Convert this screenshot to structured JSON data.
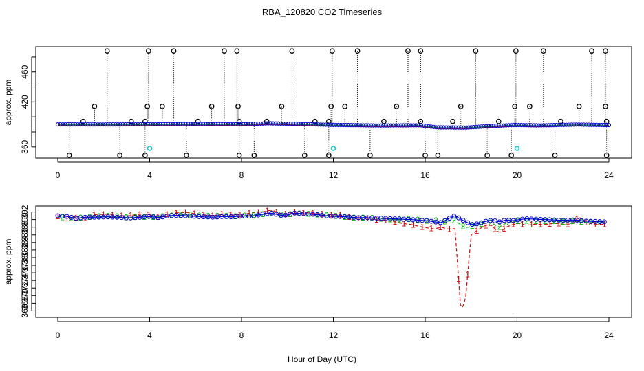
{
  "title": "RBA_120820  CO2 Timeseries",
  "xlabel": "Hour of Day (UTC)",
  "colors": {
    "red": "#dd0000",
    "green": "#00bb00",
    "blue": "#0000dd",
    "black": "#000000",
    "cyan": "#00cccc"
  },
  "chart_data": [
    {
      "type": "scatter",
      "panel": "top",
      "ylabel": "approx. ppm",
      "xlim": [
        0,
        24
      ],
      "ylim": [
        347,
        490
      ],
      "x_ticks": [
        0,
        4,
        8,
        12,
        16,
        20,
        24
      ],
      "y_ticks": [
        360,
        420,
        460
      ],
      "baseline": [
        [
          0,
          389.5
        ],
        [
          2,
          389.4
        ],
        [
          4,
          389.6
        ],
        [
          6,
          390.0
        ],
        [
          8,
          389.6
        ],
        [
          9.2,
          391.0
        ],
        [
          10.4,
          390.1
        ],
        [
          12,
          388.8
        ],
        [
          14,
          388.0
        ],
        [
          15.8,
          388.3
        ],
        [
          16.5,
          385.5
        ],
        [
          17.8,
          385.2
        ],
        [
          18.8,
          387.2
        ],
        [
          19.9,
          388.7
        ],
        [
          21,
          388.1
        ],
        [
          22.6,
          389.3
        ],
        [
          23.8,
          388.6
        ]
      ],
      "high_spikes_x": [
        2.15,
        3.95,
        5.05,
        7.25,
        7.8,
        10.2,
        11.95,
        13.05,
        15.25,
        15.8,
        18.2,
        19.95,
        21.15,
        23.25,
        23.85
      ],
      "high_spike_value": 488,
      "mid_spikes": [
        {
          "x": 1.6,
          "y": 414
        },
        {
          "x": 3.9,
          "y": 414
        },
        {
          "x": 4.55,
          "y": 414
        },
        {
          "x": 6.7,
          "y": 414
        },
        {
          "x": 7.85,
          "y": 414
        },
        {
          "x": 9.75,
          "y": 414
        },
        {
          "x": 11.9,
          "y": 414
        },
        {
          "x": 12.5,
          "y": 414
        },
        {
          "x": 14.75,
          "y": 414
        },
        {
          "x": 17.55,
          "y": 414
        },
        {
          "x": 19.9,
          "y": 414
        },
        {
          "x": 20.55,
          "y": 414
        },
        {
          "x": 22.7,
          "y": 414
        },
        {
          "x": 23.85,
          "y": 414
        }
      ],
      "small_spikes": [
        {
          "x": 1.1,
          "y": 394
        },
        {
          "x": 3.2,
          "y": 394
        },
        {
          "x": 3.8,
          "y": 394
        },
        {
          "x": 6.1,
          "y": 394
        },
        {
          "x": 7.9,
          "y": 394
        },
        {
          "x": 9.1,
          "y": 394
        },
        {
          "x": 11.2,
          "y": 394
        },
        {
          "x": 11.8,
          "y": 394
        },
        {
          "x": 14.2,
          "y": 394
        },
        {
          "x": 15.8,
          "y": 394
        },
        {
          "x": 17.2,
          "y": 394
        },
        {
          "x": 19.2,
          "y": 394
        },
        {
          "x": 21.9,
          "y": 394
        },
        {
          "x": 23.9,
          "y": 394
        }
      ],
      "low_dips_x": [
        0.5,
        2.7,
        3.8,
        5.6,
        7.9,
        8.55,
        10.75,
        11.8,
        13.6,
        16.0,
        16.55,
        18.7,
        19.75,
        21.65,
        23.9
      ],
      "low_dip_value": 349,
      "cyan_points": [
        {
          "x": 4.0,
          "y": 358
        },
        {
          "x": 12.0,
          "y": 358
        },
        {
          "x": 20.0,
          "y": 358
        }
      ]
    },
    {
      "type": "line",
      "panel": "bottom",
      "ylabel": "approx. ppm",
      "xlim": [
        0,
        24
      ],
      "ylim": [
        365,
        393
      ],
      "x_ticks": [
        0,
        4,
        8,
        12,
        16,
        20,
        24
      ],
      "y_ticks": [
        366,
        368,
        370,
        372,
        374,
        376,
        378,
        380,
        382,
        384,
        386,
        388,
        390,
        392
      ],
      "x_tick_labels": [
        "0",
        "4",
        "8",
        "12",
        "16",
        "20",
        "24"
      ],
      "y_tick_labels": [
        "366",
        "368",
        "370",
        "372",
        "374",
        "376",
        "378",
        "380",
        "382",
        "384",
        "386",
        "388",
        "390",
        "392"
      ],
      "series": [
        {
          "name": "1",
          "marker": "1",
          "color": "#dd0000",
          "points": [
            [
              0,
              390.8
            ],
            [
              0.4,
              390.3
            ],
            [
              0.6,
              391.2
            ],
            [
              0.8,
              390.4
            ],
            [
              1.2,
              390.4
            ],
            [
              1.6,
              391.3
            ],
            [
              2.2,
              391.4
            ],
            [
              2.6,
              391.0
            ],
            [
              3.1,
              391.0
            ],
            [
              3.6,
              391.4
            ],
            [
              4.0,
              391.3
            ],
            [
              4.4,
              390.6
            ],
            [
              4.8,
              391.5
            ],
            [
              5.2,
              391.8
            ],
            [
              5.6,
              391.9
            ],
            [
              6.0,
              391.5
            ],
            [
              6.4,
              391.2
            ],
            [
              6.8,
              391.0
            ],
            [
              7.2,
              391.5
            ],
            [
              7.6,
              391.2
            ],
            [
              8.0,
              391.3
            ],
            [
              8.5,
              391.8
            ],
            [
              9.0,
              392.1
            ],
            [
              9.3,
              392.5
            ],
            [
              9.7,
              391.6
            ],
            [
              10.0,
              391.4
            ],
            [
              10.3,
              392.0
            ],
            [
              10.8,
              391.8
            ],
            [
              11.3,
              391.6
            ],
            [
              11.8,
              391.3
            ],
            [
              12.2,
              391.2
            ],
            [
              12.6,
              390.7
            ],
            [
              13.0,
              390.3
            ],
            [
              13.4,
              390.4
            ],
            [
              13.8,
              390.0
            ],
            [
              14.2,
              389.8
            ],
            [
              14.6,
              389.5
            ],
            [
              15.0,
              389.0
            ],
            [
              15.4,
              388.7
            ],
            [
              15.8,
              388.1
            ],
            [
              16.1,
              387.8
            ],
            [
              16.4,
              387.5
            ],
            [
              16.7,
              388.0
            ],
            [
              17.0,
              387.5
            ],
            [
              17.3,
              387.6
            ],
            [
              17.55,
              366.1
            ],
            [
              17.75,
              368.6
            ],
            [
              18.0,
              386.0
            ],
            [
              18.3,
              387.3
            ],
            [
              18.6,
              388.4
            ],
            [
              18.9,
              388.5
            ],
            [
              19.1,
              387.1
            ],
            [
              19.25,
              386.6
            ],
            [
              19.5,
              387.9
            ],
            [
              19.8,
              388.7
            ],
            [
              20.1,
              389.0
            ],
            [
              20.4,
              388.5
            ],
            [
              20.8,
              388.8
            ],
            [
              21.2,
              388.7
            ],
            [
              21.6,
              389.0
            ],
            [
              22.0,
              388.8
            ],
            [
              22.4,
              388.8
            ],
            [
              22.7,
              390.7
            ],
            [
              23.0,
              389.2
            ],
            [
              23.4,
              388.7
            ],
            [
              23.8,
              388.8
            ]
          ]
        },
        {
          "name": "2",
          "marker": "2",
          "color": "#00bb00",
          "points": [
            [
              0,
              390.8
            ],
            [
              0.4,
              390.4
            ],
            [
              0.8,
              390.4
            ],
            [
              1.2,
              390.6
            ],
            [
              1.6,
              390.8
            ],
            [
              2.2,
              390.9
            ],
            [
              2.6,
              390.8
            ],
            [
              3.1,
              390.5
            ],
            [
              3.6,
              390.7
            ],
            [
              4.0,
              390.6
            ],
            [
              4.4,
              390.7
            ],
            [
              4.8,
              391.0
            ],
            [
              5.2,
              391.1
            ],
            [
              5.6,
              391.4
            ],
            [
              6.0,
              391.1
            ],
            [
              6.4,
              390.9
            ],
            [
              6.8,
              390.9
            ],
            [
              7.2,
              391.0
            ],
            [
              7.6,
              390.8
            ],
            [
              8.0,
              391.0
            ],
            [
              8.5,
              391.2
            ],
            [
              9.0,
              391.4
            ],
            [
              9.3,
              391.6
            ],
            [
              9.7,
              391.3
            ],
            [
              10.0,
              391.3
            ],
            [
              10.3,
              391.6
            ],
            [
              10.8,
              391.5
            ],
            [
              11.3,
              391.3
            ],
            [
              11.8,
              391.0
            ],
            [
              12.2,
              390.9
            ],
            [
              12.6,
              390.6
            ],
            [
              13.0,
              390.4
            ],
            [
              13.4,
              390.5
            ],
            [
              13.8,
              390.3
            ],
            [
              14.2,
              390.2
            ],
            [
              14.6,
              390.0
            ],
            [
              15.0,
              390.0
            ],
            [
              15.4,
              390.2
            ],
            [
              15.8,
              389.8
            ],
            [
              16.1,
              389.6
            ],
            [
              16.4,
              389.8
            ],
            [
              16.7,
              389.4
            ],
            [
              17.0,
              389.6
            ],
            [
              17.3,
              389.8
            ],
            [
              17.55,
              388.6
            ],
            [
              17.75,
              387.8
            ],
            [
              18.0,
              388.2
            ],
            [
              18.3,
              388.6
            ],
            [
              18.6,
              389.1
            ],
            [
              18.9,
              389.2
            ],
            [
              19.1,
              388.3
            ],
            [
              19.25,
              388.0
            ],
            [
              19.5,
              389.0
            ],
            [
              19.8,
              389.4
            ],
            [
              20.1,
              389.6
            ],
            [
              20.4,
              389.7
            ],
            [
              20.8,
              389.6
            ],
            [
              21.2,
              389.6
            ],
            [
              21.6,
              389.6
            ],
            [
              22.0,
              389.4
            ],
            [
              22.4,
              389.6
            ],
            [
              22.7,
              389.4
            ],
            [
              23.0,
              389.3
            ],
            [
              23.4,
              389.2
            ],
            [
              23.8,
              389.2
            ]
          ]
        },
        {
          "name": "3",
          "marker": "3",
          "color": "#0000dd",
          "points": [
            [
              0,
              391.0
            ],
            [
              0.4,
              390.8
            ],
            [
              0.8,
              390.3
            ],
            [
              1.2,
              390.6
            ],
            [
              1.6,
              390.6
            ],
            [
              2.2,
              390.7
            ],
            [
              2.6,
              390.6
            ],
            [
              3.1,
              390.4
            ],
            [
              3.6,
              390.6
            ],
            [
              4.0,
              390.8
            ],
            [
              4.4,
              390.5
            ],
            [
              4.8,
              391.0
            ],
            [
              5.2,
              391.1
            ],
            [
              5.6,
              391.0
            ],
            [
              6.0,
              390.8
            ],
            [
              6.4,
              390.7
            ],
            [
              6.8,
              390.6
            ],
            [
              7.2,
              390.8
            ],
            [
              7.6,
              390.7
            ],
            [
              8.0,
              390.9
            ],
            [
              8.5,
              390.9
            ],
            [
              9.0,
              391.5
            ],
            [
              9.3,
              391.7
            ],
            [
              9.7,
              391.1
            ],
            [
              10.0,
              391.2
            ],
            [
              10.3,
              391.7
            ],
            [
              10.8,
              391.5
            ],
            [
              11.3,
              391.3
            ],
            [
              11.8,
              390.9
            ],
            [
              12.2,
              390.8
            ],
            [
              12.6,
              390.7
            ],
            [
              13.0,
              390.5
            ],
            [
              13.4,
              390.5
            ],
            [
              13.8,
              390.4
            ],
            [
              14.2,
              390.3
            ],
            [
              14.6,
              390.2
            ],
            [
              15.0,
              390.1
            ],
            [
              15.4,
              390.0
            ],
            [
              15.8,
              389.8
            ],
            [
              16.1,
              389.7
            ],
            [
              16.4,
              389.4
            ],
            [
              16.7,
              389.2
            ],
            [
              17.0,
              390.2
            ],
            [
              17.3,
              391.0
            ],
            [
              17.55,
              390.1
            ],
            [
              17.75,
              389.5
            ],
            [
              18.0,
              388.7
            ],
            [
              18.3,
              388.9
            ],
            [
              18.6,
              389.5
            ],
            [
              18.9,
              389.8
            ],
            [
              19.1,
              389.6
            ],
            [
              19.25,
              389.4
            ],
            [
              19.5,
              389.9
            ],
            [
              19.8,
              389.7
            ],
            [
              20.1,
              390.0
            ],
            [
              20.4,
              390.2
            ],
            [
              20.8,
              390.1
            ],
            [
              21.2,
              390.0
            ],
            [
              21.6,
              389.9
            ],
            [
              22.0,
              389.8
            ],
            [
              22.4,
              389.9
            ],
            [
              22.7,
              389.8
            ],
            [
              23.0,
              389.6
            ],
            [
              23.4,
              389.5
            ],
            [
              23.8,
              389.4
            ]
          ]
        }
      ]
    }
  ]
}
